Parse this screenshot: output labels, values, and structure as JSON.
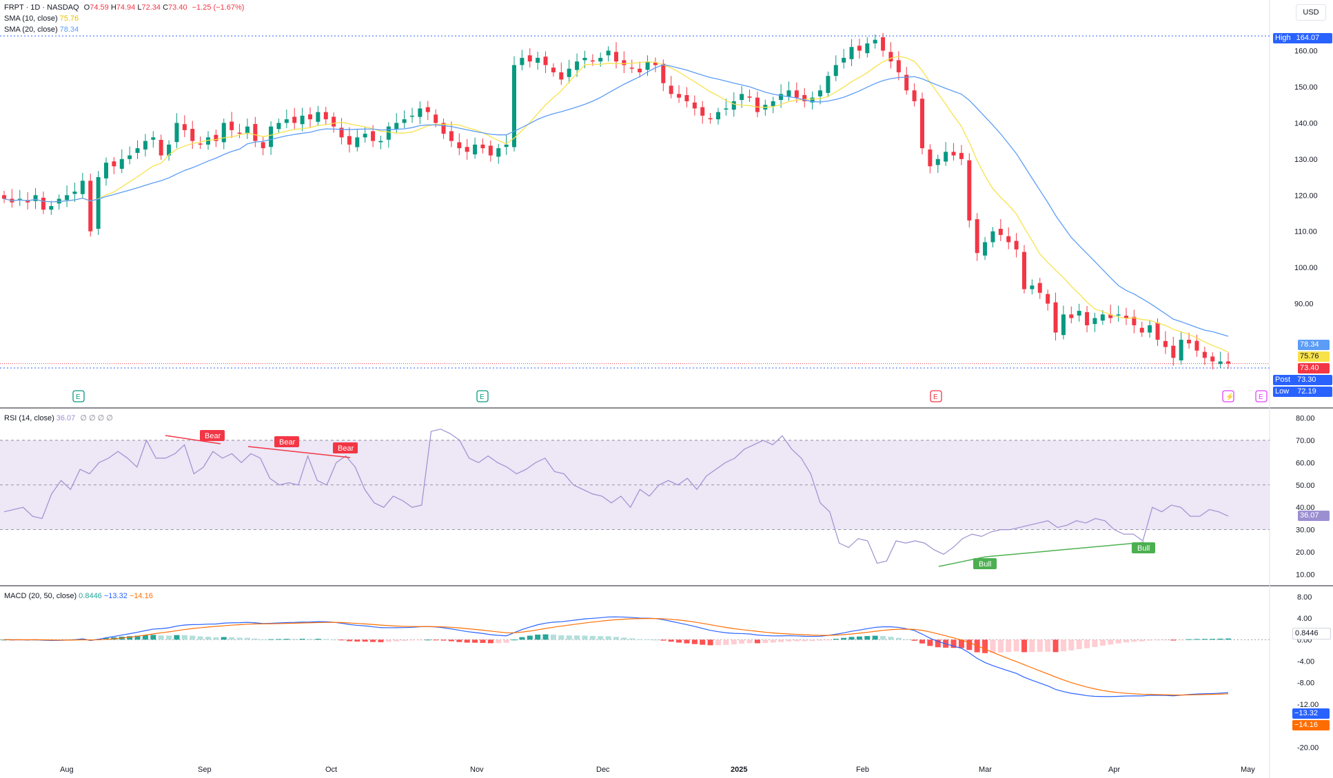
{
  "legend": {
    "symbol_line": "FRPT · 1D · NASDAQ",
    "open_label": "O",
    "open": "74.59",
    "high_label": "H",
    "high": "74.94",
    "low_label": "L",
    "low": "72.34",
    "close_label": "C",
    "close": "73.40",
    "change": "−1.25 (−1.67%)",
    "sma10_label": "SMA (10, close)",
    "sma10_value": "75.76",
    "sma20_label": "SMA (20, close)",
    "sma20_value": "78.34",
    "rsi_label": "RSI (14, close)",
    "rsi_value": "36.07",
    "rsi_extra": "∅ ∅ ∅ ∅",
    "macd_label": "MACD (20, 50, close)",
    "macd_hist": "0.8446",
    "macd_line": "−13.32",
    "macd_signal": "−14.16"
  },
  "currency": "USD",
  "price_badges": {
    "high_label": "High",
    "high_value": "164.07",
    "sma20": "78.34",
    "sma10": "75.76",
    "close": "73.40",
    "post_label": "Post",
    "post_value": "73.30",
    "low_label": "Low",
    "low_value": "72.19"
  },
  "rsi_badge": "36.07",
  "macd_badges": {
    "hist": "0.8446",
    "line": "−13.32",
    "signal": "−14.16"
  },
  "events": [
    "E",
    "E",
    "E",
    "⚡",
    "E"
  ],
  "divergence_labels": {
    "bear": "Bear",
    "bull": "Bull"
  },
  "colors": {
    "up": "#089981",
    "down": "#f23645",
    "sma10": "#f7e24a",
    "sma20": "#5b9cf6",
    "macd": "#2962ff",
    "signal": "#ff6d00",
    "rsi": "#9c8fd0",
    "rsi_band": "#ede7f6"
  },
  "chart_data": [
    {
      "type": "candlestick",
      "title": "FRPT · 1D · NASDAQ",
      "x_ticks": [
        "Aug",
        "Sep",
        "Oct",
        "Nov",
        "Dec",
        "2025",
        "Feb",
        "Mar",
        "Apr",
        "May"
      ],
      "y_ticks": [
        90,
        100,
        110,
        120,
        130,
        140,
        150,
        160
      ],
      "ylim": [
        71,
        167
      ],
      "series_close": [
        119,
        118,
        119,
        118,
        120,
        116,
        117,
        119,
        120,
        121,
        124,
        110,
        125,
        129,
        128,
        130,
        131,
        133,
        135,
        136,
        131,
        134,
        140,
        138,
        135,
        134,
        136,
        135,
        140,
        138,
        137,
        139,
        135,
        133,
        139,
        140,
        141,
        140,
        142,
        141,
        143,
        141,
        139,
        136,
        134,
        136,
        137,
        135,
        135,
        139,
        140,
        141,
        142,
        144,
        143,
        140,
        137,
        135,
        133,
        132,
        134,
        133,
        131,
        133,
        134,
        156,
        158,
        157,
        158,
        156,
        154,
        152,
        155,
        157,
        158,
        157,
        158,
        160,
        157,
        156,
        155,
        154,
        157,
        156,
        151,
        148,
        147,
        146,
        144,
        142,
        141,
        143,
        144,
        146,
        148,
        147,
        143,
        145,
        146,
        148,
        149,
        147,
        146,
        147,
        149,
        153,
        156,
        158,
        161,
        160,
        162,
        163,
        160,
        157,
        154,
        149,
        146,
        133,
        128,
        130,
        132,
        131,
        130,
        113,
        104,
        107,
        110,
        109,
        107,
        105,
        94,
        95,
        93,
        90,
        82,
        87,
        86,
        88,
        84,
        86,
        87,
        86,
        87,
        86,
        84,
        82,
        84,
        80,
        78,
        75,
        80,
        79,
        77,
        75,
        74,
        74,
        73.4
      ],
      "sma10_value": 75.76,
      "sma20_value": 78.34,
      "high": 164.07,
      "low": 72.19,
      "close": 73.4,
      "post": 73.3
    },
    {
      "type": "line",
      "title": "RSI (14, close)",
      "y_ticks": [
        10,
        20,
        30,
        40,
        50,
        60,
        70,
        80
      ],
      "ylim": [
        8,
        82
      ],
      "levels": [
        30,
        50,
        70
      ],
      "values": [
        38,
        39,
        40,
        36,
        35,
        46,
        52,
        48,
        57,
        55,
        60,
        62,
        65,
        62,
        58,
        70,
        62,
        62,
        64,
        68,
        55,
        58,
        65,
        62,
        64,
        60,
        64,
        62,
        53,
        50,
        51,
        50,
        63,
        52,
        50,
        60,
        63,
        58,
        48,
        42,
        40,
        45,
        43,
        40,
        41,
        74,
        75,
        73,
        70,
        62,
        60,
        63,
        60,
        58,
        55,
        57,
        60,
        62,
        56,
        55,
        50,
        48,
        46,
        45,
        42,
        45,
        40,
        48,
        45,
        50,
        52,
        50,
        53,
        48,
        54,
        57,
        60,
        62,
        66,
        68,
        70,
        68,
        72,
        66,
        62,
        55,
        42,
        38,
        24,
        22,
        26,
        25,
        15,
        16,
        25,
        24,
        25,
        24,
        21,
        19,
        22,
        26,
        28,
        27,
        29,
        30,
        30,
        31,
        32,
        33,
        34,
        31,
        32,
        34,
        33,
        35,
        34,
        30,
        28,
        28,
        25,
        40,
        38,
        41,
        40,
        36,
        36,
        39,
        38,
        36.07
      ],
      "bear_divergences": 3,
      "bull_divergences": 2
    },
    {
      "type": "bar+line",
      "title": "MACD (20, 50, close)",
      "y_ticks": [
        -20,
        -16,
        -12,
        -8,
        -4,
        0,
        4,
        8
      ],
      "ylim": [
        -22,
        9
      ],
      "histogram_last": 0.8446,
      "macd_last": -13.32,
      "signal_last": -14.16
    }
  ]
}
